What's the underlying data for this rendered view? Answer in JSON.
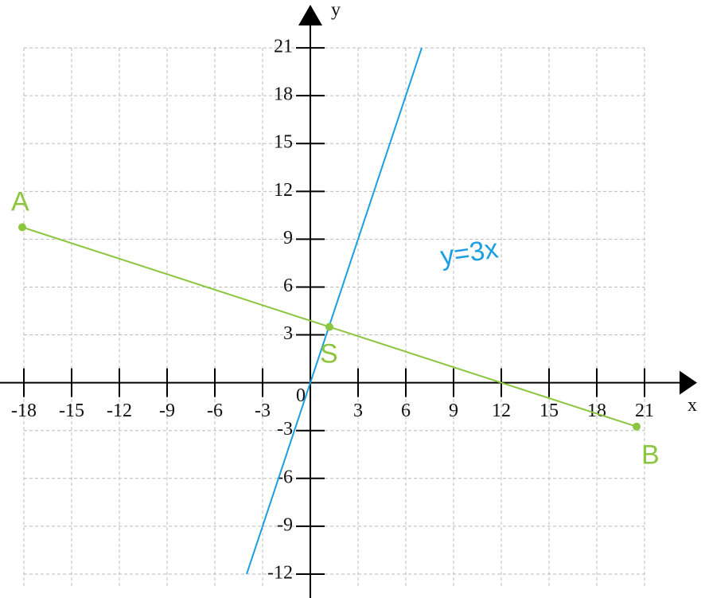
{
  "chart_data": {
    "type": "line",
    "xlabel": "x",
    "ylabel": "y",
    "xlim": [
      -19.5,
      24.8
    ],
    "ylim": [
      -13.5,
      24
    ],
    "xticks": [
      -18,
      -15,
      -12,
      -9,
      -6,
      -3,
      0,
      3,
      6,
      9,
      12,
      15,
      18,
      21
    ],
    "yticks": [
      -12,
      -9,
      -6,
      -3,
      3,
      6,
      9,
      12,
      15,
      18,
      21
    ],
    "grid": true,
    "series": [
      {
        "name": "y=3x",
        "color": "#1a9fe0",
        "x": [
          -4,
          7
        ],
        "values": [
          -12,
          21
        ]
      },
      {
        "color": "#8cc63f",
        "x": [
          -18.1,
          20.5
        ],
        "values": [
          9.75,
          -2.75
        ],
        "point_labels": [
          "A",
          "B"
        ]
      }
    ],
    "intersection": {
      "label": "S",
      "x": 1.2,
      "y": 3.5,
      "color": "#8cc63f"
    }
  }
}
